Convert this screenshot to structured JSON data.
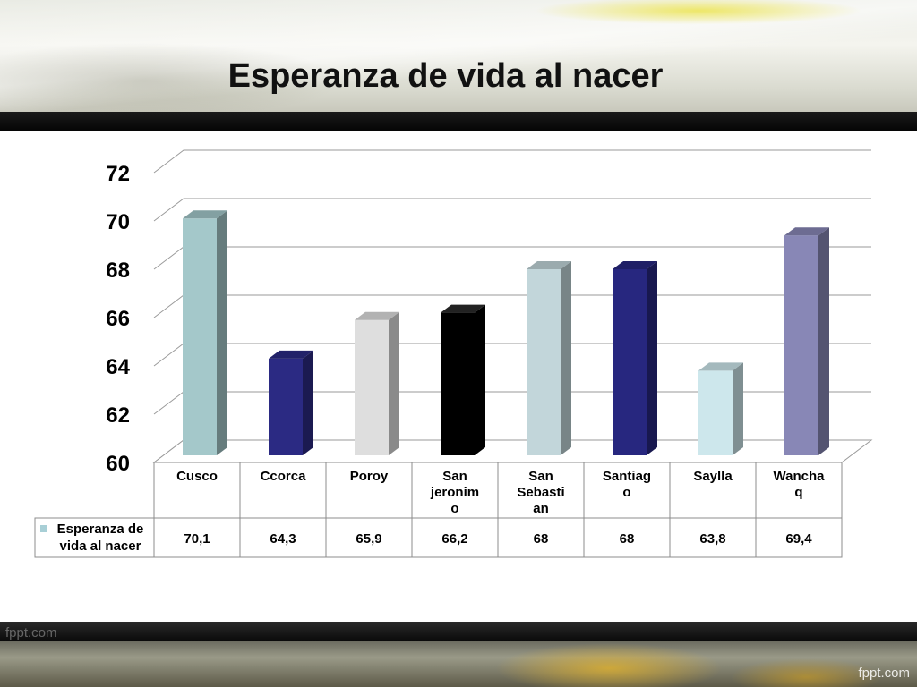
{
  "slide": {
    "title": "Esperanza de vida al nacer",
    "watermark_left": "fppt.com",
    "watermark_right": "fppt.com"
  },
  "chart_data": {
    "type": "bar",
    "style": "3d-column-with-data-table",
    "title": "Esperanza de vida al nacer",
    "categories": [
      "Cusco",
      "Ccorca",
      "Poroy",
      "San jeronimo",
      "San Sebastian",
      "Santiago",
      "Saylla",
      "Wanchaq"
    ],
    "category_lines": [
      [
        "Cusco"
      ],
      [
        "Ccorca"
      ],
      [
        "Poroy"
      ],
      [
        "San",
        "jeronim",
        "o"
      ],
      [
        "San",
        "Sebasti",
        "an"
      ],
      [
        "Santiag",
        "o"
      ],
      [
        "Saylla"
      ],
      [
        "Wancha",
        "q"
      ]
    ],
    "series": [
      {
        "name": "Esperanza de vida al nacer",
        "name_lines": [
          "Esperanza de",
          "vida al nacer"
        ],
        "values": [
          70.1,
          64.3,
          65.9,
          66.2,
          68,
          68,
          63.8,
          69.4
        ],
        "value_labels": [
          "70,1",
          "64,3",
          "65,9",
          "66,2",
          "68",
          "68",
          "63,8",
          "69,4"
        ]
      }
    ],
    "ylim": [
      60,
      72
    ],
    "yticks": [
      60,
      62,
      64,
      66,
      68,
      70,
      72
    ],
    "grid": true,
    "legend": "data-table",
    "legend_swatch_color": "#a8cfd6",
    "bar_colors": [
      "#a4c8ca",
      "#2b2a83",
      "#dedede",
      "#000000",
      "#c2d6da",
      "#27277f",
      "#cde7ec",
      "#8887b6"
    ]
  }
}
